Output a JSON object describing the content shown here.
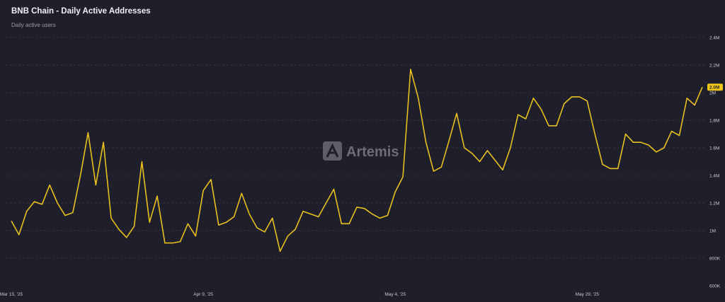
{
  "header": {
    "title": "BNB Chain - Daily Active Addresses",
    "subtitle": "Daily active users"
  },
  "watermark": {
    "text": "Artemis"
  },
  "colors": {
    "background": "#1f1f2b",
    "line": "#e8c01e",
    "grid": "#3a3a48",
    "badge": "#f0c61c"
  },
  "chart_data": {
    "type": "line",
    "title": "BNB Chain - Daily Active Addresses",
    "subtitle": "Daily active users",
    "x_tick_labels": [
      "Mar 15, '25",
      "Apr 9, '25",
      "May 4, '25",
      "May 29, '25"
    ],
    "y_tick_labels": [
      "600K",
      "800K",
      "1M",
      "1.2M",
      "1.4M",
      "1.6M",
      "1.8M",
      "2M",
      "2.2M",
      "2.4M"
    ],
    "ylim": [
      600000,
      2400000
    ],
    "y_axis_position": "right",
    "grid": true,
    "last_value_label": "2.0M",
    "series": [
      {
        "start_date": "2025-03-15",
        "values": [
          1070000,
          970000,
          1140000,
          1210000,
          1190000,
          1330000,
          1200000,
          1110000,
          1130000,
          1400000,
          1710000,
          1330000,
          1640000,
          1090000,
          1010000,
          950000,
          1030000,
          1500000,
          1060000,
          1250000,
          910000,
          910000,
          920000,
          1050000,
          960000,
          1290000,
          1370000,
          1040000,
          1060000,
          1100000,
          1270000,
          1120000,
          1020000,
          990000,
          1090000,
          850000,
          960000,
          1010000,
          1140000,
          1120000,
          1100000,
          1200000,
          1300000,
          1050000,
          1050000,
          1170000,
          1160000,
          1120000,
          1090000,
          1110000,
          1280000,
          1390000,
          2170000,
          1960000,
          1640000,
          1430000,
          1460000,
          1650000,
          1850000,
          1600000,
          1560000,
          1500000,
          1580000,
          1510000,
          1440000,
          1600000,
          1840000,
          1810000,
          1960000,
          1880000,
          1760000,
          1760000,
          1920000,
          1970000,
          1970000,
          1940000,
          1700000,
          1480000,
          1450000,
          1450000,
          1700000,
          1640000,
          1640000,
          1620000,
          1570000,
          1600000,
          1720000,
          1690000,
          1960000,
          1910000,
          2040000
        ]
      }
    ]
  }
}
